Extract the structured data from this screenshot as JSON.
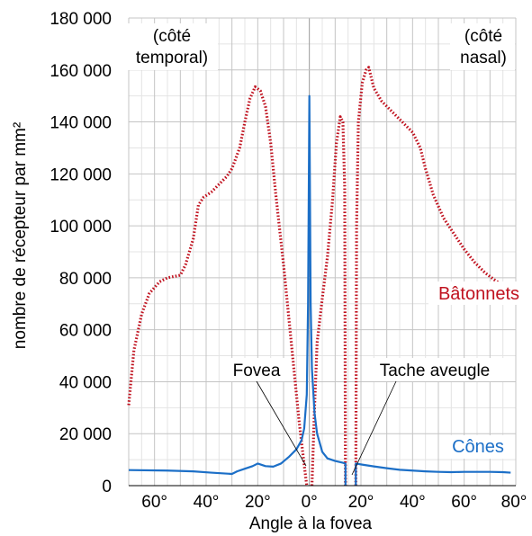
{
  "chart_data": {
    "type": "line",
    "title": "",
    "xlabel": "Angle à la fovea",
    "ylabel": "nombre de récepteur par mm²",
    "xlim": [
      -70,
      80
    ],
    "ylim": [
      0,
      180000
    ],
    "grid": true,
    "x_ticks": [
      {
        "value": -60,
        "label": "60°"
      },
      {
        "value": -40,
        "label": "40°"
      },
      {
        "value": -20,
        "label": "20°"
      },
      {
        "value": 0,
        "label": "0°"
      },
      {
        "value": 20,
        "label": "20°"
      },
      {
        "value": 40,
        "label": "40°"
      },
      {
        "value": 60,
        "label": "60°"
      },
      {
        "value": 80,
        "label": "80°"
      }
    ],
    "y_ticks": [
      {
        "value": 0,
        "label": "0"
      },
      {
        "value": 20000,
        "label": "20 000"
      },
      {
        "value": 40000,
        "label": "40 000"
      },
      {
        "value": 60000,
        "label": "60 000"
      },
      {
        "value": 80000,
        "label": "80 000"
      },
      {
        "value": 100000,
        "label": "100 000"
      },
      {
        "value": 120000,
        "label": "120 000"
      },
      {
        "value": 140000,
        "label": "140 000"
      },
      {
        "value": 160000,
        "label": "160 000"
      },
      {
        "value": 180000,
        "label": "180 000"
      }
    ],
    "series": [
      {
        "name": "Bâtonnets",
        "color": "#c0121f",
        "style": "dotted",
        "segments": [
          [
            [
              -70,
              31000
            ],
            [
              -68,
              52000
            ],
            [
              -65,
              66000
            ],
            [
              -62,
              74000
            ],
            [
              -58,
              78500
            ],
            [
              -55,
              80000
            ],
            [
              -50,
              81000
            ],
            [
              -48,
              85000
            ],
            [
              -45,
              95000
            ],
            [
              -43,
              108000
            ],
            [
              -41,
              111000
            ],
            [
              -38,
              113000
            ],
            [
              -35,
              116000
            ],
            [
              -32,
              119000
            ],
            [
              -30,
              122000
            ],
            [
              -27,
              130000
            ],
            [
              -25,
              140000
            ],
            [
              -23,
              149000
            ],
            [
              -21,
              153500
            ],
            [
              -19,
              152000
            ],
            [
              -17,
              146000
            ],
            [
              -15,
              132000
            ],
            [
              -13,
              112000
            ],
            [
              -10,
              85000
            ],
            [
              -7,
              55000
            ],
            [
              -4,
              25000
            ],
            [
              -2,
              8000
            ],
            [
              -1,
              0
            ]
          ],
          [
            [
              1,
              0
            ],
            [
              2,
              30000
            ],
            [
              3,
              55000
            ],
            [
              5,
              72000
            ],
            [
              7,
              88000
            ],
            [
              9,
              110000
            ],
            [
              10.5,
              132000
            ],
            [
              12,
              142000
            ],
            [
              13,
              140000
            ],
            [
              13.7,
              115000
            ],
            [
              14,
              0
            ]
          ],
          [
            [
              18,
              0
            ],
            [
              18.3,
              100000
            ],
            [
              19,
              140000
            ],
            [
              20.5,
              155000
            ],
            [
              22,
              160000
            ],
            [
              23,
              161000
            ],
            [
              25,
              153000
            ],
            [
              28,
              148000
            ],
            [
              32,
              144000
            ],
            [
              36,
              140000
            ],
            [
              40,
              136000
            ],
            [
              43,
              130000
            ],
            [
              45,
              122000
            ],
            [
              48,
              112000
            ],
            [
              52,
              103000
            ],
            [
              56,
              97000
            ],
            [
              60,
              91000
            ],
            [
              64,
              86000
            ],
            [
              68,
              82000
            ],
            [
              72,
              79000
            ],
            [
              75,
              77000
            ],
            [
              78,
              75000
            ]
          ]
        ]
      },
      {
        "name": "Cônes",
        "color": "#1c6fc7",
        "style": "solid",
        "segments": [
          [
            [
              -70,
              6000
            ],
            [
              -55,
              5800
            ],
            [
              -45,
              5500
            ],
            [
              -38,
              5000
            ],
            [
              -30,
              4500
            ],
            [
              -28,
              5500
            ],
            [
              -25,
              6500
            ],
            [
              -22,
              7500
            ],
            [
              -20,
              8500
            ],
            [
              -17,
              7500
            ],
            [
              -14,
              7300
            ],
            [
              -11,
              8500
            ],
            [
              -8,
              11000
            ],
            [
              -5,
              14000
            ],
            [
              -3,
              17500
            ],
            [
              -2,
              22000
            ],
            [
              -1,
              35000
            ],
            [
              -0.5,
              70000
            ],
            [
              0,
              150000
            ],
            [
              0.5,
              70000
            ],
            [
              1,
              45000
            ],
            [
              2,
              28000
            ],
            [
              3,
              20000
            ],
            [
              5,
              13000
            ],
            [
              7,
              10500
            ],
            [
              10,
              9500
            ],
            [
              13,
              8800
            ],
            [
              14,
              8500
            ],
            [
              14,
              0
            ]
          ],
          [
            [
              18,
              0
            ],
            [
              18,
              8500
            ],
            [
              21,
              8000
            ],
            [
              25,
              7400
            ],
            [
              30,
              6700
            ],
            [
              35,
              6100
            ],
            [
              40,
              5800
            ],
            [
              45,
              5500
            ],
            [
              50,
              5300
            ],
            [
              55,
              5200
            ],
            [
              60,
              5300
            ],
            [
              65,
              5300
            ],
            [
              70,
              5300
            ],
            [
              75,
              5200
            ],
            [
              78,
              5000
            ]
          ]
        ]
      }
    ],
    "labels": {
      "temporal_line1": "(côté",
      "temporal_line2": "temporal)",
      "nasal_line1": "(côté",
      "nasal_line2": "nasal)",
      "fovea": "Fovea",
      "blind_spot": "Tache aveugle",
      "rods": "Bâtonnets",
      "cones": "Cônes"
    }
  }
}
